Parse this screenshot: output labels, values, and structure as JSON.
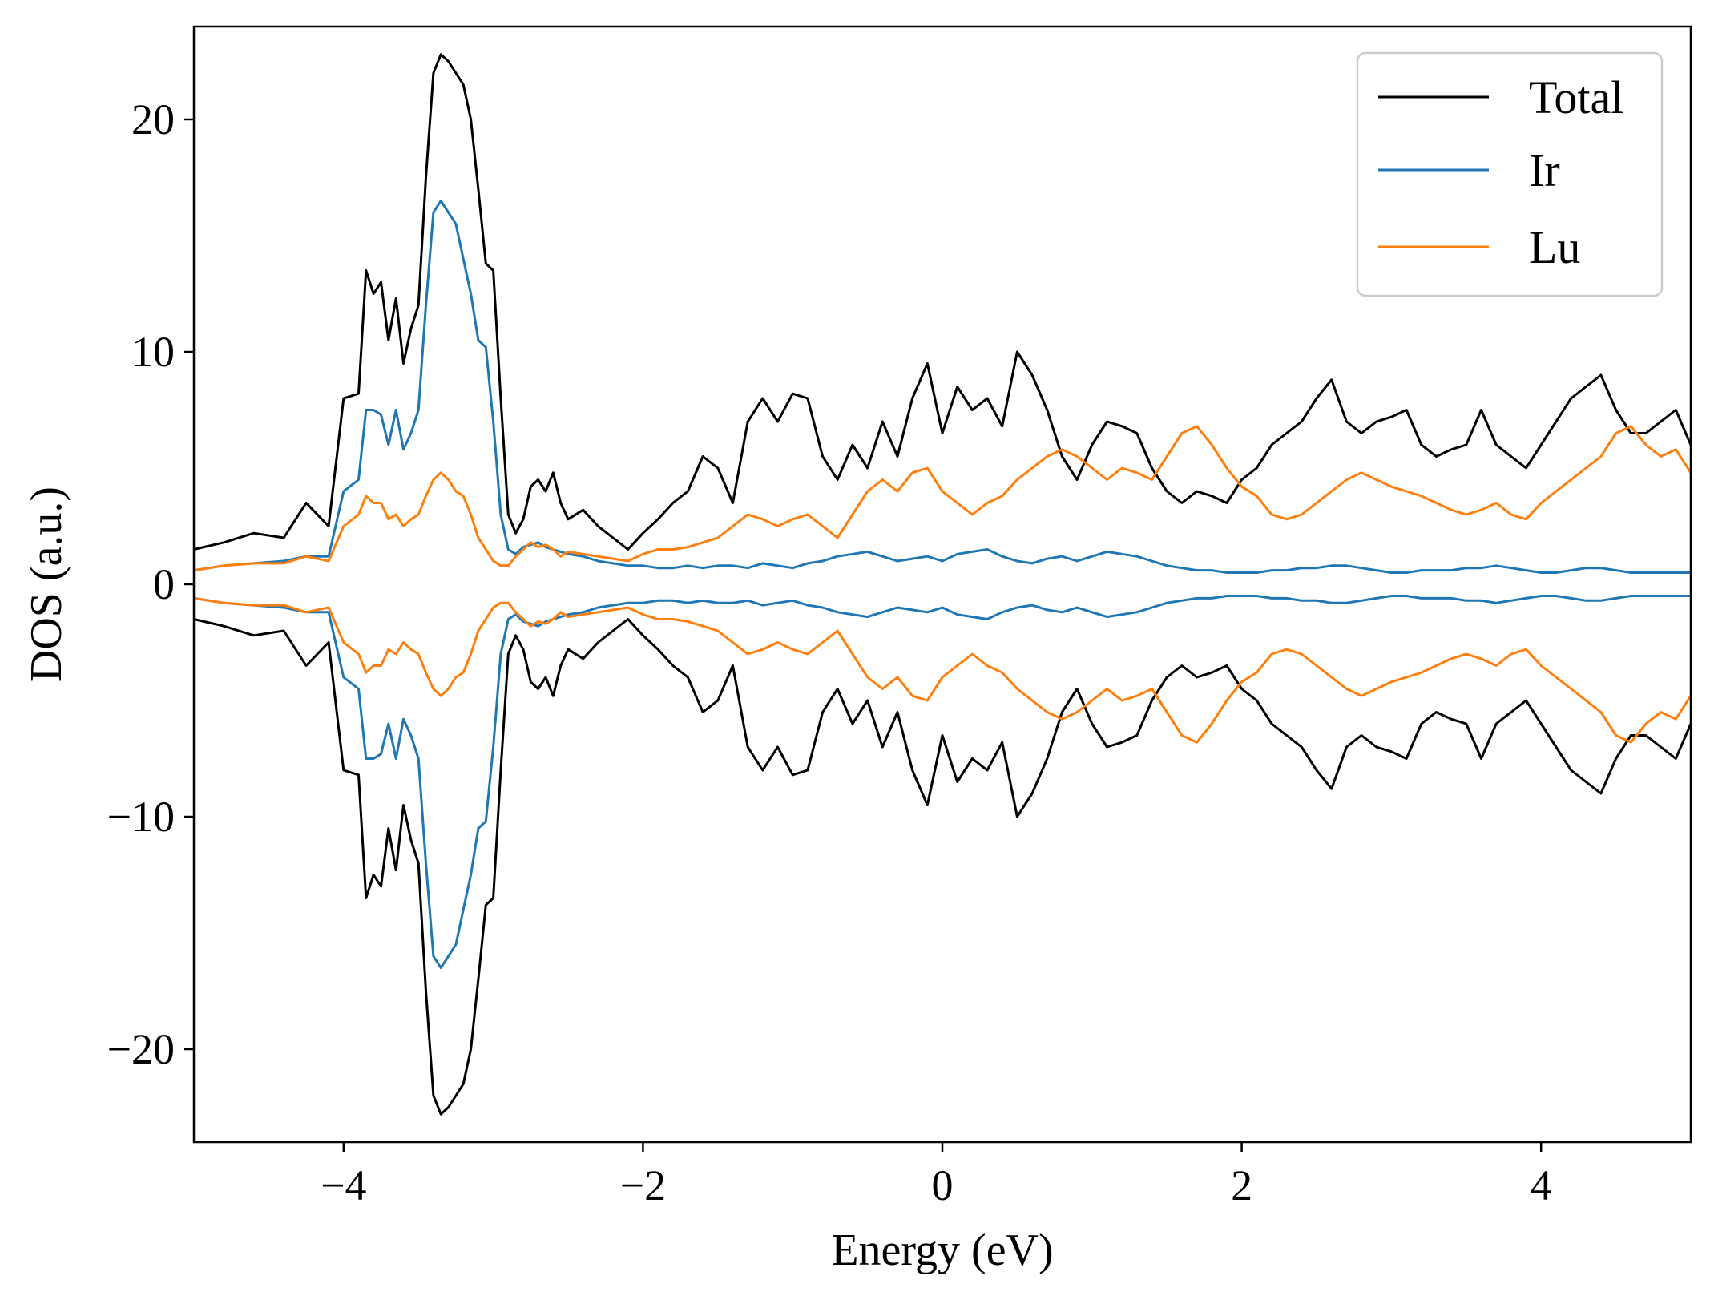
{
  "colors": {
    "total": "#000000",
    "ir": "#1f77b4",
    "lu": "#ff7f0e"
  },
  "chart_data": {
    "type": "line",
    "title": "",
    "xlabel": "Energy (eV)",
    "ylabel": "DOS (a.u.)",
    "xlim": [
      -5,
      5
    ],
    "ylim": [
      -24,
      24
    ],
    "xticks": [
      -4,
      -2,
      0,
      2,
      4
    ],
    "yticks": [
      -20,
      -10,
      0,
      10,
      20
    ],
    "xtick_labels": [
      "−4",
      "−2",
      "0",
      "2",
      "4"
    ],
    "ytick_labels": [
      "−20",
      "−10",
      "0",
      "10",
      "20"
    ],
    "grid": false,
    "legend_position": "top-right",
    "mirrored": true,
    "x": [
      -5.0,
      -4.8,
      -4.6,
      -4.4,
      -4.25,
      -4.1,
      -4.0,
      -3.9,
      -3.85,
      -3.8,
      -3.75,
      -3.7,
      -3.65,
      -3.6,
      -3.55,
      -3.5,
      -3.45,
      -3.4,
      -3.35,
      -3.3,
      -3.25,
      -3.2,
      -3.15,
      -3.1,
      -3.05,
      -3.0,
      -2.95,
      -2.9,
      -2.85,
      -2.8,
      -2.75,
      -2.7,
      -2.65,
      -2.6,
      -2.55,
      -2.5,
      -2.4,
      -2.3,
      -2.2,
      -2.1,
      -2.0,
      -1.9,
      -1.8,
      -1.7,
      -1.6,
      -1.5,
      -1.4,
      -1.3,
      -1.2,
      -1.1,
      -1.0,
      -0.9,
      -0.8,
      -0.7,
      -0.6,
      -0.5,
      -0.4,
      -0.3,
      -0.2,
      -0.1,
      0.0,
      0.1,
      0.2,
      0.3,
      0.4,
      0.5,
      0.6,
      0.7,
      0.8,
      0.9,
      1.0,
      1.1,
      1.2,
      1.3,
      1.4,
      1.5,
      1.6,
      1.7,
      1.8,
      1.9,
      2.0,
      2.1,
      2.2,
      2.3,
      2.4,
      2.5,
      2.6,
      2.7,
      2.8,
      2.9,
      3.0,
      3.1,
      3.2,
      3.3,
      3.4,
      3.5,
      3.6,
      3.7,
      3.8,
      3.9,
      4.0,
      4.1,
      4.2,
      4.3,
      4.4,
      4.5,
      4.6,
      4.7,
      4.8,
      4.9,
      5.0
    ],
    "series": [
      {
        "name": "Total",
        "color": "#000000",
        "values": [
          1.5,
          1.8,
          2.2,
          2.0,
          3.5,
          2.5,
          8.0,
          8.2,
          13.5,
          12.5,
          13.0,
          10.5,
          12.3,
          9.5,
          11.0,
          12.0,
          17.5,
          22.0,
          22.8,
          22.5,
          22.0,
          21.5,
          20.0,
          17.0,
          13.8,
          13.5,
          8.0,
          3.0,
          2.2,
          2.8,
          4.2,
          4.5,
          4.0,
          4.8,
          3.5,
          2.8,
          3.2,
          2.5,
          2.0,
          1.5,
          2.2,
          2.8,
          3.5,
          4.0,
          5.5,
          5.0,
          3.5,
          7.0,
          8.0,
          7.0,
          8.2,
          8.0,
          5.5,
          4.5,
          6.0,
          5.0,
          7.0,
          5.5,
          8.0,
          9.5,
          6.5,
          8.5,
          7.5,
          8.0,
          6.8,
          10.0,
          9.0,
          7.5,
          5.5,
          4.5,
          6.0,
          7.0,
          6.8,
          6.5,
          5.0,
          4.0,
          3.5,
          4.0,
          3.8,
          3.5,
          4.5,
          5.0,
          6.0,
          6.5,
          7.0,
          8.0,
          8.8,
          7.0,
          6.5,
          7.0,
          7.2,
          7.5,
          6.0,
          5.5,
          5.8,
          6.0,
          7.5,
          6.0,
          5.5,
          5.0,
          6.0,
          7.0,
          8.0,
          8.5,
          9.0,
          7.5,
          6.5,
          6.5,
          7.0,
          7.5,
          6.0
        ]
      },
      {
        "name": "Ir",
        "color": "#1f77b4",
        "values": [
          0.6,
          0.8,
          0.9,
          1.0,
          1.2,
          1.2,
          4.0,
          4.5,
          7.5,
          7.5,
          7.3,
          6.0,
          7.5,
          5.8,
          6.5,
          7.5,
          12.0,
          16.0,
          16.5,
          16.0,
          15.5,
          14.0,
          12.5,
          10.5,
          10.2,
          7.0,
          3.0,
          1.5,
          1.3,
          1.6,
          1.7,
          1.8,
          1.6,
          1.5,
          1.4,
          1.3,
          1.2,
          1.0,
          0.9,
          0.8,
          0.8,
          0.7,
          0.7,
          0.8,
          0.7,
          0.8,
          0.8,
          0.7,
          0.9,
          0.8,
          0.7,
          0.9,
          1.0,
          1.2,
          1.3,
          1.4,
          1.2,
          1.0,
          1.1,
          1.2,
          1.0,
          1.3,
          1.4,
          1.5,
          1.2,
          1.0,
          0.9,
          1.1,
          1.2,
          1.0,
          1.2,
          1.4,
          1.3,
          1.2,
          1.0,
          0.8,
          0.7,
          0.6,
          0.6,
          0.5,
          0.5,
          0.5,
          0.6,
          0.6,
          0.7,
          0.7,
          0.8,
          0.8,
          0.7,
          0.6,
          0.5,
          0.5,
          0.6,
          0.6,
          0.6,
          0.7,
          0.7,
          0.8,
          0.7,
          0.6,
          0.5,
          0.5,
          0.6,
          0.7,
          0.7,
          0.6,
          0.5,
          0.5,
          0.5,
          0.5,
          0.5
        ]
      },
      {
        "name": "Lu",
        "color": "#ff7f0e",
        "values": [
          0.6,
          0.8,
          0.9,
          0.9,
          1.2,
          1.0,
          2.5,
          3.0,
          3.8,
          3.5,
          3.5,
          2.8,
          3.0,
          2.5,
          2.8,
          3.0,
          3.8,
          4.5,
          4.8,
          4.5,
          4.0,
          3.8,
          3.0,
          2.0,
          1.5,
          1.0,
          0.8,
          0.8,
          1.2,
          1.5,
          1.8,
          1.6,
          1.7,
          1.5,
          1.2,
          1.4,
          1.3,
          1.2,
          1.1,
          1.0,
          1.3,
          1.5,
          1.5,
          1.6,
          1.8,
          2.0,
          2.5,
          3.0,
          2.8,
          2.5,
          2.8,
          3.0,
          2.5,
          2.0,
          3.0,
          4.0,
          4.5,
          4.0,
          4.8,
          5.0,
          4.0,
          3.5,
          3.0,
          3.5,
          3.8,
          4.5,
          5.0,
          5.5,
          5.8,
          5.5,
          5.0,
          4.5,
          5.0,
          4.8,
          4.5,
          5.5,
          6.5,
          6.8,
          6.0,
          5.0,
          4.2,
          3.8,
          3.0,
          2.8,
          3.0,
          3.5,
          4.0,
          4.5,
          4.8,
          4.5,
          4.2,
          4.0,
          3.8,
          3.5,
          3.2,
          3.0,
          3.2,
          3.5,
          3.0,
          2.8,
          3.5,
          4.0,
          4.5,
          5.0,
          5.5,
          6.5,
          6.8,
          6.0,
          5.5,
          5.8,
          4.8
        ]
      }
    ]
  }
}
